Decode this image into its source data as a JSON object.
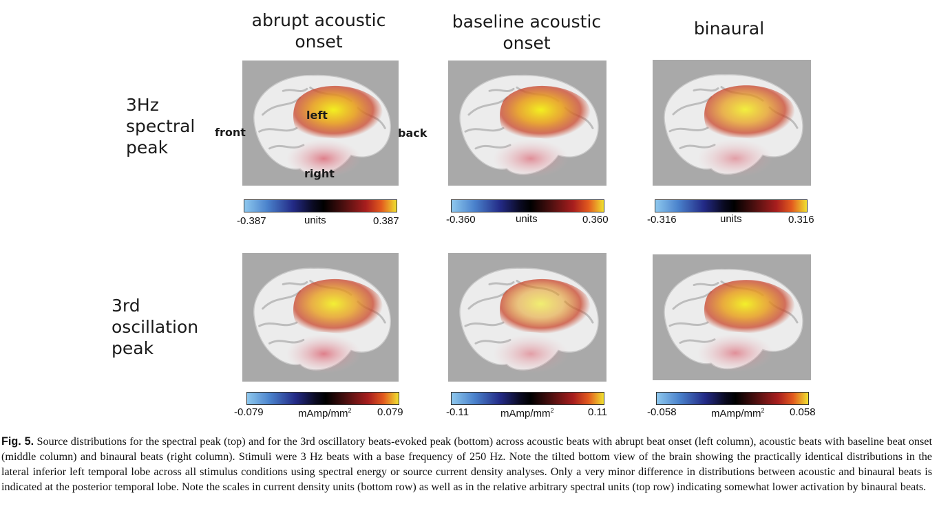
{
  "columns": [
    {
      "line1": "abrupt acoustic",
      "line2": "onset"
    },
    {
      "line1": "baseline acoustic",
      "line2": "onset"
    },
    {
      "line1": "binaural",
      "line2": ""
    }
  ],
  "rows": [
    {
      "line1": "3Hz",
      "line2": "spectral",
      "line3": "peak"
    },
    {
      "line1": "3rd",
      "line2": "oscillation",
      "line3": "peak"
    }
  ],
  "annotations": {
    "front": "front",
    "back": "back",
    "left": "left",
    "right": "right"
  },
  "colorbars": {
    "top": [
      {
        "min": "-0.387",
        "unit": "units",
        "max": "0.387"
      },
      {
        "min": "-0.360",
        "unit": "units",
        "max": "0.360"
      },
      {
        "min": "-0.316",
        "unit": "units",
        "max": "0.316"
      }
    ],
    "bottom": [
      {
        "min": "-0.079",
        "unit": "mAmp/mm",
        "sup": "2",
        "max": "0.079"
      },
      {
        "min": "-0.11",
        "unit": "mAmp/mm",
        "sup": "2",
        "max": "0.11"
      },
      {
        "min": "-0.058",
        "unit": "mAmp/mm",
        "sup": "2",
        "max": "0.058"
      }
    ]
  },
  "caption": {
    "label": "Fig. 5.",
    "text": "Source distributions for the spectral peak (top) and for the 3rd oscillatory beats-evoked peak (bottom) across acoustic beats with abrupt beat onset (left column), acoustic beats with baseline beat onset (middle column) and binaural beats (right column). Stimuli were 3 Hz beats with a base frequency of 250 Hz. Note the tilted bottom view of the brain showing the practically identical distributions in the lateral inferior left temporal lobe across all stimulus conditions using spectral energy or source current density analyses. Only a very minor difference in distributions between acoustic and binaural beats is indicated at the posterior temporal lobe. Note the scales in current density units (bottom row) as well as in the relative arbitrary spectral units (top row) indicating somewhat lower activation by binaural beats."
  }
}
